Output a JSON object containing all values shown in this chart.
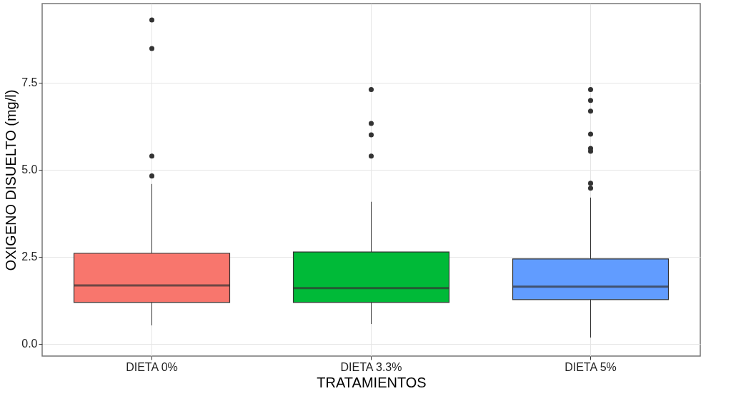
{
  "chart_data": {
    "type": "box",
    "xlabel": "TRATAMIENTOS",
    "ylabel": "OXIGENO DISUELTO (mg/l)",
    "categories": [
      "DIETA 0%",
      "DIETA 3.3%",
      "DIETA 5%"
    ],
    "colors": [
      "#f8766d",
      "#00ba38",
      "#619cff"
    ],
    "boxes": [
      {
        "low": 0.53,
        "q1": 1.19,
        "median": 1.68,
        "q3": 2.6,
        "high": 4.59,
        "outliers": [
          9.3,
          8.48,
          5.39,
          4.82
        ]
      },
      {
        "low": 0.57,
        "q1": 1.19,
        "median": 1.6,
        "q3": 2.64,
        "high": 4.08,
        "outliers": [
          7.3,
          6.33,
          6.0,
          5.39
        ]
      },
      {
        "low": 0.18,
        "q1": 1.27,
        "median": 1.64,
        "q3": 2.44,
        "high": 4.2,
        "outliers": [
          7.3,
          6.99,
          6.68,
          6.02,
          5.61,
          5.53,
          4.61,
          4.47
        ]
      }
    ],
    "ylim": [
      -0.35,
      9.77
    ],
    "yticks": [
      {
        "value": 0,
        "label": "0.0"
      },
      2.5,
      {
        "value": 5,
        "label": "5.0"
      },
      7.5
    ],
    "grid": true,
    "legend": false
  }
}
